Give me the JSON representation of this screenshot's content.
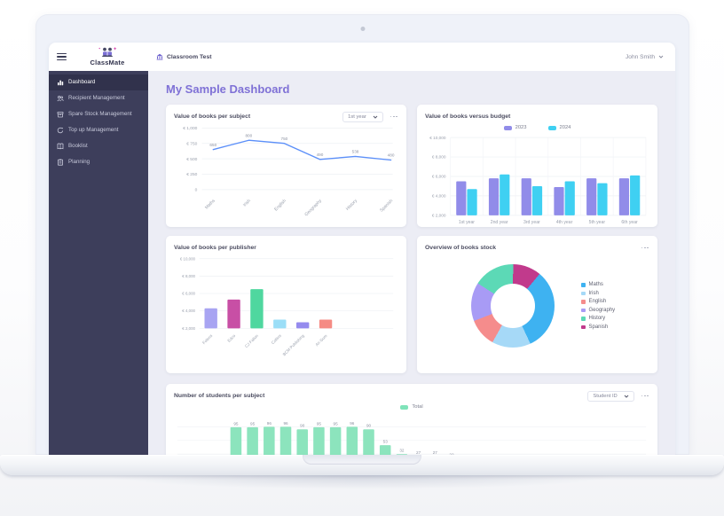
{
  "header": {
    "logo_text": "ClassMate",
    "classroom_label": "Classroom Test",
    "user_name": "John Smith"
  },
  "sidebar": {
    "items": [
      {
        "label": "Dashboard",
        "icon": "bar-chart-icon",
        "active": true
      },
      {
        "label": "Recipient Management",
        "icon": "people-icon",
        "active": false
      },
      {
        "label": "Spare Stock Management",
        "icon": "box-icon",
        "active": false
      },
      {
        "label": "Top up Management",
        "icon": "refresh-icon",
        "active": false
      },
      {
        "label": "Booklist",
        "icon": "book-icon",
        "active": false
      },
      {
        "label": "Planning",
        "icon": "clipboard-icon",
        "active": false
      }
    ]
  },
  "page": {
    "title": "My Sample Dashboard"
  },
  "chart_data": [
    {
      "id": "books-per-subject",
      "type": "line",
      "title": "Value of books per subject",
      "filter_selected": "1st year",
      "categories": [
        "Maths",
        "Irish",
        "English",
        "Geography",
        "History",
        "Spanish"
      ],
      "values": [
        650,
        800,
        750,
        490,
        538,
        480
      ],
      "point_labels": [
        "650",
        "800",
        "750",
        "490",
        "538",
        "480"
      ],
      "y_ticks": [
        "€ 1,000",
        "€ 750",
        "€ 500",
        "€ 250",
        "0"
      ],
      "ylim": [
        0,
        1000
      ],
      "line_color": "#5b8ff9",
      "grid": true
    },
    {
      "id": "books-versus-budget",
      "type": "bar",
      "title": "Value of books versus budget",
      "categories": [
        "1st year",
        "2nd year",
        "3rd year",
        "4th year",
        "5th year",
        "6th year"
      ],
      "series": [
        {
          "name": "2023",
          "color": "#918ce9",
          "values": [
            5500,
            5800,
            5800,
            4900,
            5800,
            5800
          ]
        },
        {
          "name": "2024",
          "color": "#3fd0f2",
          "values": [
            4700,
            6200,
            5000,
            5500,
            5300,
            6100
          ]
        }
      ],
      "y_ticks": [
        "€ 10,000",
        "€ 8,000",
        "€ 6,000",
        "€ 4,000",
        "€ 2,000"
      ],
      "ylim": [
        2000,
        10000
      ],
      "legend_position": "top",
      "grid": true
    },
    {
      "id": "books-per-publisher",
      "type": "bar",
      "title": "Value of books per publisher",
      "categories": [
        "Folens",
        "Edco",
        "CJ Fallon",
        "Collins",
        "BCM Publishing",
        "An Gum"
      ],
      "values": [
        4300,
        5300,
        6500,
        3000,
        2700,
        3000
      ],
      "bar_colors": [
        "#a8a4f2",
        "#c84fa5",
        "#4fd79f",
        "#9bdef7",
        "#958bee",
        "#f58b84"
      ],
      "y_ticks": [
        "€ 10,000",
        "€ 8,000",
        "€ 6,000",
        "€ 4,000",
        "€ 2,000"
      ],
      "ylim": [
        2000,
        10000
      ],
      "grid": true
    },
    {
      "id": "books-stock-overview",
      "type": "pie",
      "title": "Overview of books stock",
      "slices": [
        {
          "label": "Maths",
          "color": "#3eb2f1",
          "value": 32
        },
        {
          "label": "Irish",
          "color": "#a6d9f7",
          "value": 15
        },
        {
          "label": "English",
          "color": "#f58c8c",
          "value": 11
        },
        {
          "label": "Geography",
          "color": "#a89bf5",
          "value": 15
        },
        {
          "label": "History",
          "color": "#5cd9b6",
          "value": 16
        },
        {
          "label": "Spanish",
          "color": "#c13a8c",
          "value": 11
        }
      ],
      "start_angle_deg": 40,
      "legend_position": "right"
    },
    {
      "id": "students-per-subject",
      "type": "bar",
      "title": "Number of students per subject",
      "filter_selected": "Student ID",
      "legend": [
        {
          "name": "Total",
          "color": "#7fe3b9"
        }
      ],
      "values": [
        95,
        95,
        96,
        96,
        90,
        95,
        95,
        96,
        90,
        53,
        32,
        27,
        27,
        22,
        18
      ],
      "bar_color": "#8ce4bd",
      "ylim": [
        0,
        100
      ],
      "legend_position": "top",
      "grid": true
    }
  ]
}
